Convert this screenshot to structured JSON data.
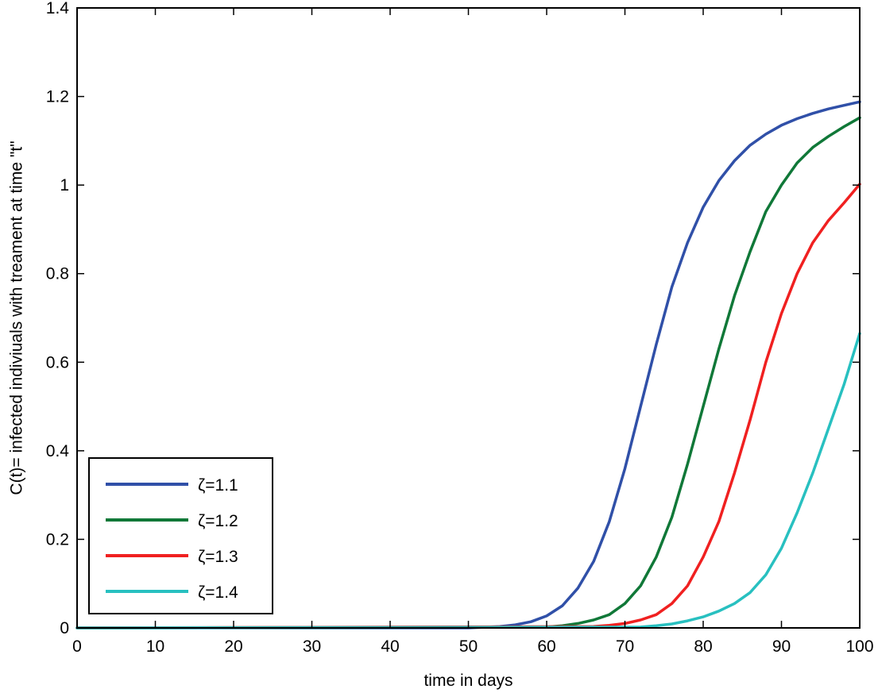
{
  "chart_data": {
    "type": "line",
    "xlabel": "time in days",
    "ylabel": "C(t)= infected indiviuals with treament at time \"t\"",
    "xlim": [
      0,
      100
    ],
    "ylim": [
      0,
      1.4
    ],
    "xticks": [
      0,
      10,
      20,
      30,
      40,
      50,
      60,
      70,
      80,
      90,
      100
    ],
    "yticks": [
      0,
      0.2,
      0.4,
      0.6,
      0.8,
      1,
      1.2,
      1.4
    ],
    "xtick_labels": [
      "0",
      "10",
      "20",
      "30",
      "40",
      "50",
      "60",
      "70",
      "80",
      "90",
      "100"
    ],
    "ytick_labels": [
      "0",
      "0.2",
      "0.4",
      "0.6",
      "0.8",
      "1",
      "1.2",
      "1.4"
    ],
    "grid": false,
    "legend_position": "bottom-left",
    "series": [
      {
        "name": "ζ=1.1",
        "color": "#3050a8",
        "x": [
          0,
          50,
          54,
          56,
          58,
          60,
          62,
          64,
          66,
          68,
          70,
          72,
          74,
          76,
          78,
          80,
          82,
          84,
          86,
          88,
          90,
          92,
          94,
          96,
          98,
          100
        ],
        "y": [
          0,
          0,
          0.003,
          0.007,
          0.014,
          0.027,
          0.05,
          0.09,
          0.15,
          0.24,
          0.36,
          0.5,
          0.64,
          0.77,
          0.87,
          0.95,
          1.01,
          1.055,
          1.09,
          1.115,
          1.135,
          1.15,
          1.162,
          1.172,
          1.18,
          1.188
        ]
      },
      {
        "name": "ζ=1.2",
        "color": "#107838",
        "x": [
          0,
          60,
          62,
          64,
          66,
          68,
          70,
          72,
          74,
          76,
          78,
          80,
          82,
          84,
          86,
          88,
          90,
          92,
          94,
          96,
          98,
          100
        ],
        "y": [
          0,
          0.002,
          0.005,
          0.01,
          0.018,
          0.03,
          0.055,
          0.095,
          0.16,
          0.25,
          0.37,
          0.5,
          0.63,
          0.75,
          0.85,
          0.94,
          1.0,
          1.05,
          1.085,
          1.11,
          1.132,
          1.152
        ]
      },
      {
        "name": "ζ=1.3",
        "color": "#f02020",
        "x": [
          0,
          66,
          68,
          70,
          72,
          74,
          76,
          78,
          80,
          82,
          84,
          86,
          88,
          90,
          92,
          94,
          96,
          98,
          100
        ],
        "y": [
          0,
          0.003,
          0.006,
          0.01,
          0.018,
          0.03,
          0.055,
          0.095,
          0.16,
          0.24,
          0.35,
          0.47,
          0.6,
          0.71,
          0.8,
          0.87,
          0.92,
          0.96,
          1.002
        ]
      },
      {
        "name": "ζ=1.4",
        "color": "#28c0c0",
        "x": [
          0,
          72,
          74,
          76,
          78,
          80,
          82,
          84,
          86,
          88,
          90,
          92,
          94,
          96,
          98,
          100
        ],
        "y": [
          0,
          0.002,
          0.005,
          0.009,
          0.016,
          0.025,
          0.038,
          0.055,
          0.08,
          0.12,
          0.18,
          0.26,
          0.35,
          0.45,
          0.55,
          0.665
        ]
      }
    ]
  }
}
